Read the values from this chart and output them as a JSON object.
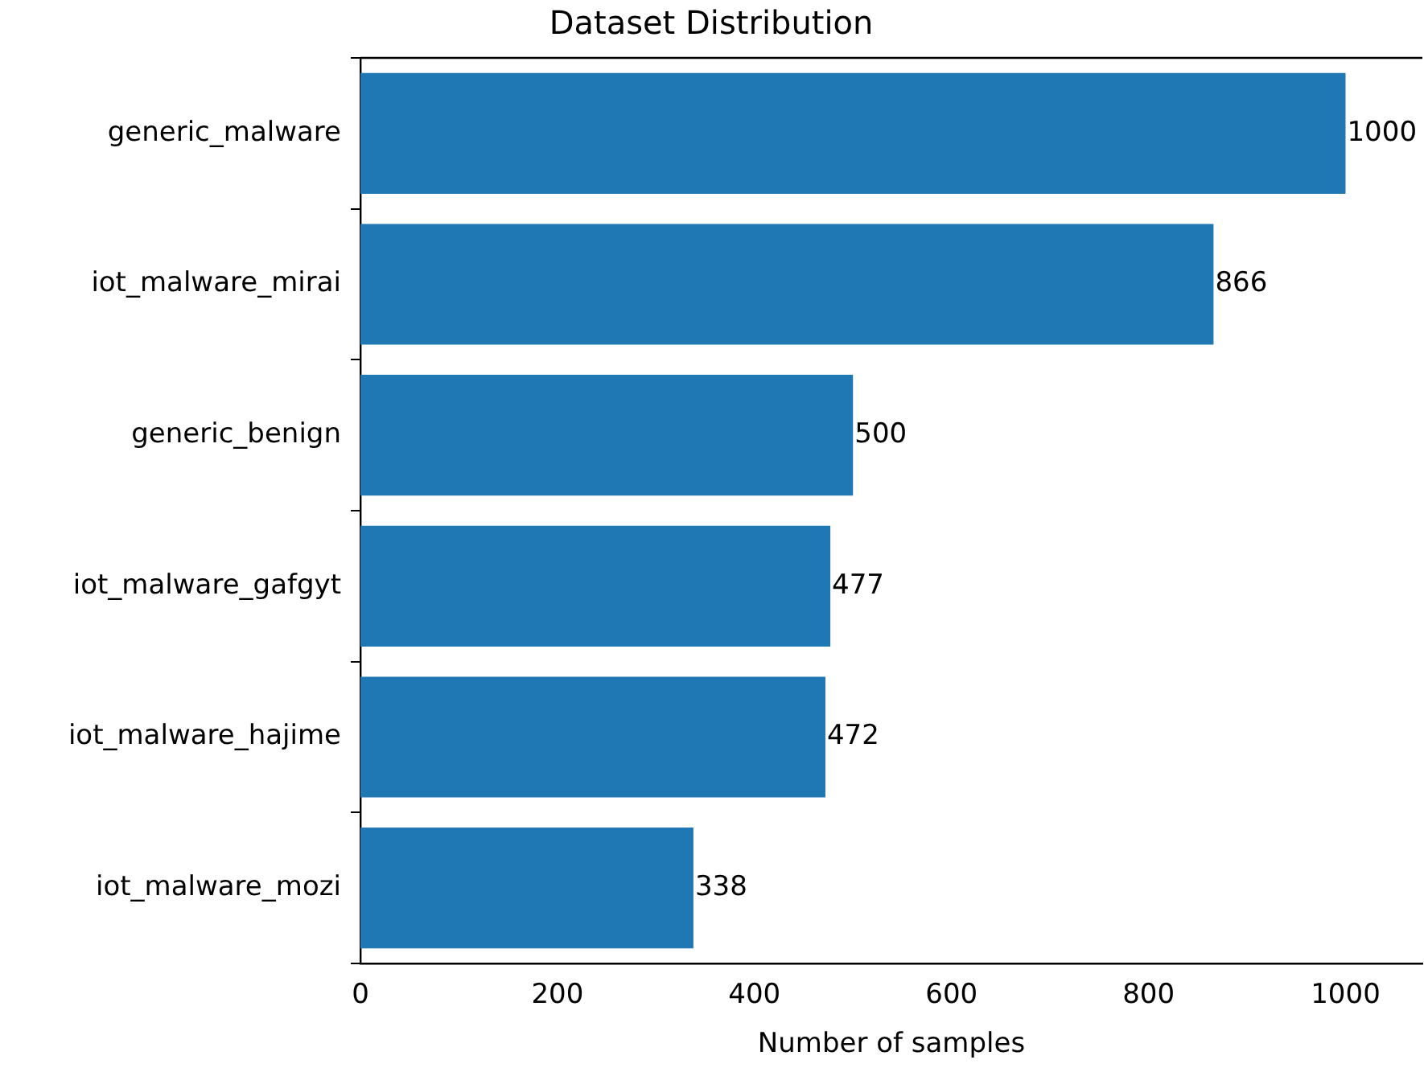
{
  "chart_data": {
    "type": "bar",
    "orientation": "horizontal",
    "title": "Dataset Distribution",
    "xlabel": "Number of samples",
    "categories": [
      "generic_malware",
      "iot_malware_mirai",
      "generic_benign",
      "iot_malware_gafgyt",
      "iot_malware_hajime",
      "iot_malware_mozi"
    ],
    "values": [
      1000,
      866,
      500,
      477,
      472,
      338
    ],
    "color": "#1f77b4",
    "data_labels": true,
    "xlim": [
      0,
      1078
    ],
    "xticks": [
      0,
      200,
      400,
      600,
      800,
      1000
    ],
    "grid": false,
    "legend": false
  }
}
